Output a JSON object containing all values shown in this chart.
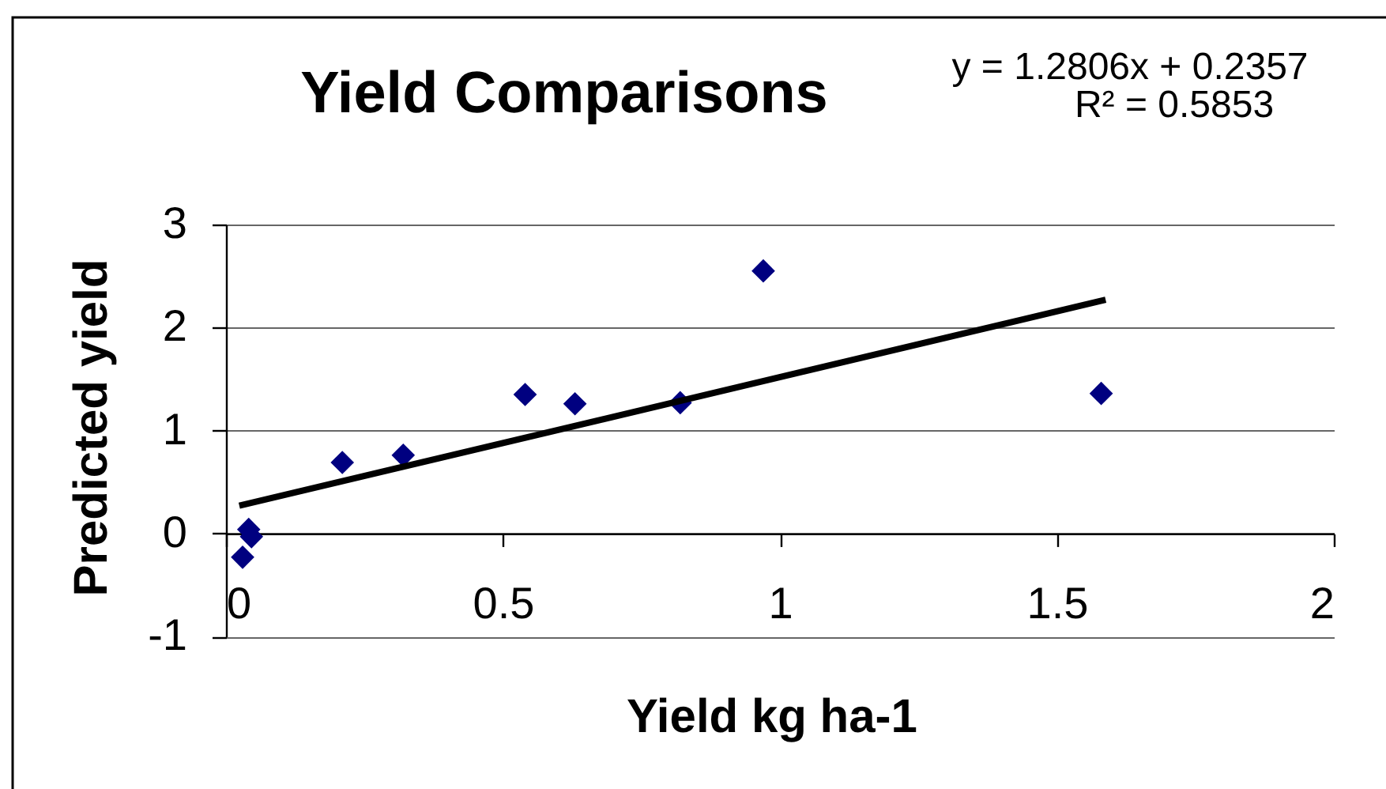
{
  "chart_data": {
    "type": "scatter",
    "title": "Yield Comparisons",
    "xlabel": "Yield kg ha-1",
    "ylabel": "Predicted yield",
    "annotations": [
      "y = 1.2806x + 0.2357",
      "R² = 0.5853"
    ],
    "series": [
      {
        "color": "#000080",
        "marker": "diamond",
        "x": [
          0.03,
          0.041,
          0.046,
          0.21,
          0.32,
          0.54,
          0.63,
          0.82,
          0.97,
          1.58
        ],
        "values": [
          -0.23,
          0.04,
          -0.03,
          0.69,
          0.76,
          1.35,
          1.26,
          1.27,
          2.55,
          1.36
        ]
      },
      {
        "type": "line",
        "color": "#000000",
        "marker": "none",
        "x": [
          0.024,
          1.588
        ],
        "values": [
          0.27,
          2.27
        ]
      }
    ],
    "xlim": [
      0,
      2
    ],
    "ylim": [
      -1,
      3
    ],
    "xticks": [
      0,
      0.5,
      1,
      1.5,
      2
    ],
    "yticks": [
      -1,
      0,
      1,
      2,
      3
    ],
    "grid": "y"
  }
}
